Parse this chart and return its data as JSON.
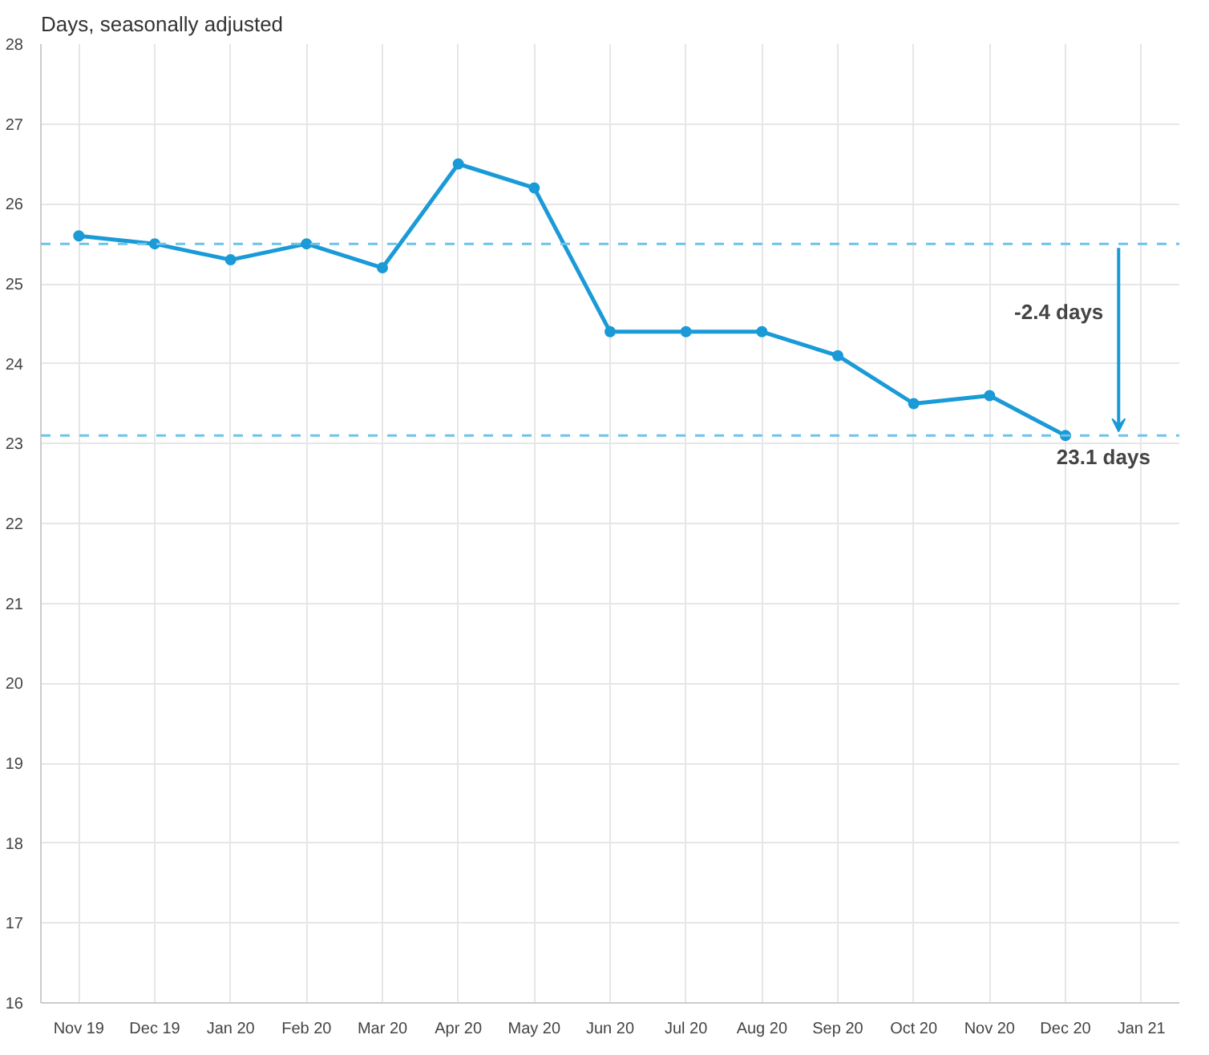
{
  "chart_data": {
    "type": "line",
    "subtitle": "Days, seasonally adjusted",
    "categories": [
      "Nov 19",
      "Dec 19",
      "Jan 20",
      "Feb 20",
      "Mar 20",
      "Apr 20",
      "May 20",
      "Jun 20",
      "Jul 20",
      "Aug 20",
      "Sep 20",
      "Oct 20",
      "Nov 20",
      "Dec 20",
      "Jan 21"
    ],
    "series": [
      {
        "color": "#1a9ad6",
        "values": [
          25.6,
          25.5,
          25.3,
          25.5,
          25.2,
          26.5,
          26.2,
          24.4,
          24.4,
          24.4,
          24.1,
          23.5,
          23.6,
          23.1,
          null
        ]
      }
    ],
    "ylim": [
      16,
      28
    ],
    "yticks": [
      16,
      17,
      18,
      19,
      20,
      21,
      22,
      23,
      24,
      25,
      26,
      27,
      28
    ],
    "grid": true,
    "marker": "circle",
    "line_style": "solid",
    "ref_lines": [
      {
        "axis": "y",
        "value": 25.5,
        "label": null,
        "color": "#6cc3ec",
        "line_style": "dashed"
      },
      {
        "axis": "y",
        "value": 23.1,
        "label": "23.1 days",
        "color": "#6cc3ec",
        "line_style": "dashed"
      }
    ],
    "annotations": [
      "-2.4 days"
    ]
  }
}
